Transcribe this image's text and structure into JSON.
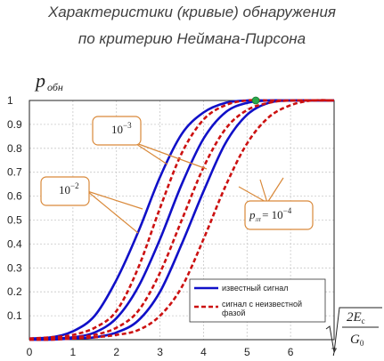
{
  "title_line1": "Характеристики (кривые) обнаружения",
  "title_line2": "по критерию Неймана-Пирсона",
  "chart_data": {
    "type": "line",
    "ylabel_main": "p",
    "ylabel_sub": "обн",
    "xlabel_radical_num": "2E",
    "xlabel_radical_num_sub": "c",
    "xlabel_radical_den": "G",
    "xlabel_radical_den_sub": "0",
    "xlim": [
      0,
      7
    ],
    "ylim": [
      0,
      1
    ],
    "x_ticks": [
      "0",
      "1",
      "2",
      "3",
      "4",
      "5",
      "6",
      "7"
    ],
    "y_ticks": [
      "0.1",
      "0.2",
      "0.3",
      "0.4",
      "0.5",
      "0.6",
      "0.7",
      "0.8",
      "0.9",
      "1"
    ],
    "grid": true,
    "legend_position": "bottom-right",
    "callouts": [
      {
        "base": "10",
        "exp": "−3"
      },
      {
        "base": "10",
        "exp": "−2"
      },
      {
        "prefix": "p",
        "prefix_sub": "лт",
        "base": "= 10",
        "exp": "−4"
      }
    ],
    "series": [
      {
        "name": "известный сигнал",
        "color": "#1010c8",
        "style": "solid",
        "curves": [
          {
            "x": [
              0,
              0.5,
              1,
              1.5,
              2,
              2.5,
              3,
              3.5,
              4,
              4.5,
              5,
              5.5,
              6,
              7
            ],
            "y": [
              0.005,
              0.01,
              0.035,
              0.1,
              0.25,
              0.45,
              0.68,
              0.86,
              0.95,
              0.99,
              1,
              1,
              1,
              1
            ]
          },
          {
            "x": [
              0,
              0.5,
              1,
              1.5,
              2,
              2.5,
              3,
              3.5,
              4,
              4.5,
              5,
              5.5,
              6,
              7
            ],
            "y": [
              0.0,
              0.005,
              0.01,
              0.03,
              0.09,
              0.22,
              0.42,
              0.65,
              0.84,
              0.95,
              0.99,
              1,
              1,
              1
            ]
          },
          {
            "x": [
              0,
              0.5,
              1,
              1.5,
              2,
              2.5,
              3,
              3.5,
              4,
              4.5,
              5,
              5.5,
              6,
              7
            ],
            "y": [
              0.0,
              0.0,
              0.005,
              0.01,
              0.03,
              0.08,
              0.2,
              0.4,
              0.62,
              0.82,
              0.94,
              0.99,
              1,
              1
            ]
          }
        ]
      },
      {
        "name": "сигнал с неизвестной фазой",
        "color": "#cc1111",
        "style": "dashed",
        "curves": [
          {
            "x": [
              0,
              0.5,
              1,
              1.5,
              2,
              2.5,
              3,
              3.5,
              4,
              4.5,
              5,
              5.5,
              6,
              7
            ],
            "y": [
              0.005,
              0.01,
              0.02,
              0.05,
              0.12,
              0.3,
              0.55,
              0.78,
              0.92,
              0.98,
              1,
              1,
              1,
              1
            ]
          },
          {
            "x": [
              0,
              0.5,
              1,
              1.5,
              2,
              2.5,
              3,
              3.5,
              4,
              4.5,
              5,
              5.5,
              6,
              7
            ],
            "y": [
              0.0,
              0.005,
              0.01,
              0.02,
              0.05,
              0.12,
              0.28,
              0.5,
              0.72,
              0.88,
              0.96,
              0.99,
              1,
              1
            ]
          },
          {
            "x": [
              0,
              0.5,
              1,
              1.5,
              2,
              2.5,
              3,
              3.5,
              4,
              4.5,
              5,
              5.5,
              6,
              6.5,
              7
            ],
            "y": [
              0.0,
              0.0,
              0.005,
              0.01,
              0.02,
              0.04,
              0.1,
              0.22,
              0.42,
              0.64,
              0.82,
              0.93,
              0.98,
              1,
              1
            ]
          }
        ]
      }
    ],
    "marker": {
      "x": 5.2,
      "y": 1.0,
      "color": "#2aa84a"
    }
  }
}
